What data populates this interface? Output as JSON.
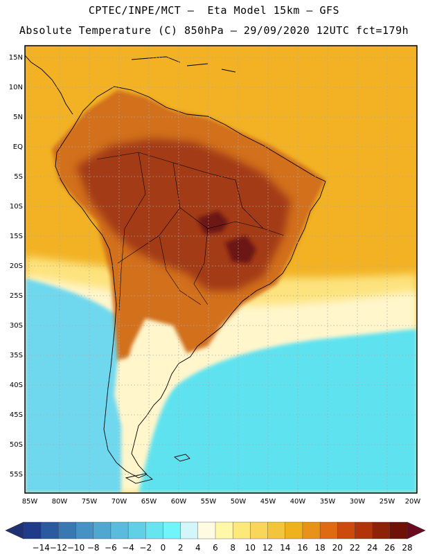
{
  "header": {
    "line1": "CPTEC/INPE/MCT –  Eta Model 15km – GFS",
    "line2": "Absolute Temperature (C) 850hPa – 29/09/2020 12UTC fct=179h"
  },
  "axes": {
    "lat_labels": [
      "15N",
      "10N",
      "5N",
      "EQ",
      "5S",
      "10S",
      "15S",
      "20S",
      "25S",
      "30S",
      "35S",
      "40S",
      "45S",
      "50S",
      "55S"
    ],
    "lon_labels": [
      "85W",
      "80W",
      "75W",
      "70W",
      "65W",
      "60W",
      "55W",
      "50W",
      "45W",
      "40W",
      "35W",
      "30W",
      "25W",
      "20W"
    ]
  },
  "colorbar": {
    "labels": [
      "-14",
      "-12",
      "-10",
      "-8",
      "-6",
      "-4",
      "-2",
      "0",
      "2",
      "4",
      "6",
      "8",
      "10",
      "12",
      "14",
      "16",
      "18",
      "20",
      "22",
      "24",
      "26",
      "28"
    ],
    "colors": [
      "#1f3b8a",
      "#2c5aa0",
      "#3a78b4",
      "#4692c4",
      "#50a8d0",
      "#59bcdc",
      "#5fd0e6",
      "#66e4f0",
      "#70f5fb",
      "#d3f6fb",
      "#fffbe3",
      "#fff8a8",
      "#fde87a",
      "#f9d65a",
      "#f3c53a",
      "#efb11c",
      "#e9921a",
      "#df6a12",
      "#cc4a0c",
      "#b2340a",
      "#8e2208",
      "#6e1208"
    ],
    "left_cap_color": "#1f3073",
    "right_cap_color": "#6a0a1e"
  },
  "map": {
    "ocean_north_color": "#f2b224",
    "land_warm_color": "#d2701e",
    "land_hot_color": "#a23a14",
    "land_peak_color": "#6c1412",
    "south_cold_color": "#5fe2ef",
    "south_cool_color": "#6fd8ee",
    "transition_pale_color": "#fff6cc",
    "transition_yellow_color": "#fde37e"
  }
}
